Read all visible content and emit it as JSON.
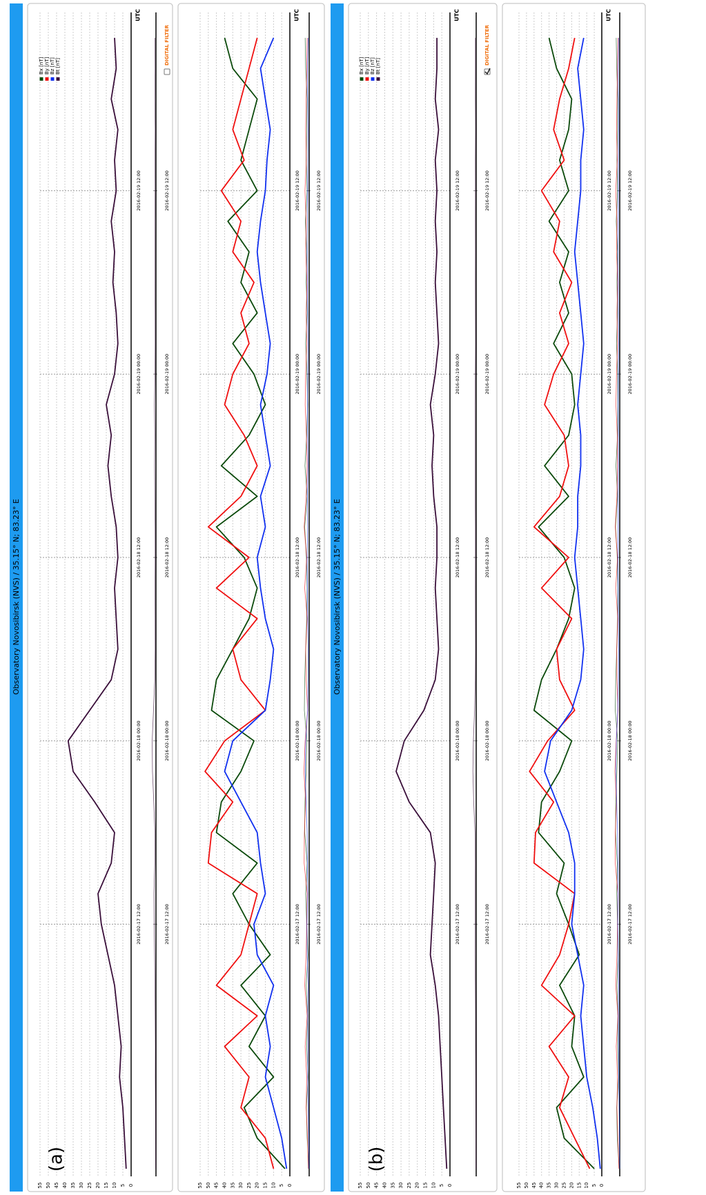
{
  "chart_data": [
    {
      "type": "line",
      "header": "Observatory Novosibirsk (NVS) / 35.15° N; 83.23° E",
      "annotation": "(a)",
      "unit_label": "UTC",
      "x": [
        "2016-02-16 20:00",
        "2016-02-16 22:00",
        "2016-02-17 00:00",
        "2016-02-17 02:00",
        "2016-02-17 04:00",
        "2016-02-17 06:00",
        "2016-02-17 08:00",
        "2016-02-17 10:00",
        "2016-02-17 12:00",
        "2016-02-17 14:00",
        "2016-02-17 16:00",
        "2016-02-17 18:00",
        "2016-02-17 20:00",
        "2016-02-17 22:00",
        "2016-02-18 00:00",
        "2016-02-18 02:00",
        "2016-02-18 04:00",
        "2016-02-18 06:00",
        "2016-02-18 08:00",
        "2016-02-18 10:00",
        "2016-02-18 12:00",
        "2016-02-18 14:00",
        "2016-02-18 16:00",
        "2016-02-18 18:00",
        "2016-02-18 20:00",
        "2016-02-18 22:00",
        "2016-02-19 00:00",
        "2016-02-19 02:00",
        "2016-02-19 04:00",
        "2016-02-19 06:00",
        "2016-02-19 08:00",
        "2016-02-19 10:00",
        "2016-02-19 12:00",
        "2016-02-19 14:00",
        "2016-02-19 16:00",
        "2016-02-19 18:00",
        "2016-02-19 20:00",
        "2016-02-19 22:00"
      ],
      "xlim": [
        "2016-02-16 19:30",
        "2016-02-19 23:40"
      ],
      "xticks": [
        "2016-02-17 12:00",
        "2016-02-18 00:00",
        "2016-02-18 12:00",
        "2016-02-19 00:00",
        "2016-02-19 12:00"
      ],
      "ylim": [
        0,
        55
      ],
      "yticks": [
        0,
        5,
        10,
        15,
        20,
        25,
        30,
        35,
        40,
        45,
        50,
        55
      ],
      "grid": true,
      "legend": [
        {
          "name": "Bx [nT]",
          "color": "#0b4a0b"
        },
        {
          "name": "By [nT]",
          "color": "#f01010"
        },
        {
          "name": "Bz [nT]",
          "color": "#1030f0"
        },
        {
          "name": "Bt [nT]",
          "color": "#3a0f3a"
        }
      ],
      "filter_label": "DIGITAL FILTER",
      "digital_filter": false,
      "series": [
        {
          "name": "Bt [nT]",
          "color": "#3a0f3a",
          "values": [
            3,
            4,
            5,
            7,
            6,
            8,
            10,
            14,
            18,
            20,
            12,
            10,
            22,
            35,
            38,
            25,
            12,
            8,
            9,
            10,
            8,
            9,
            12,
            14,
            12,
            15,
            10,
            8,
            9,
            11,
            10,
            12,
            9,
            10,
            8,
            12,
            9,
            10
          ]
        }
      ]
    },
    {
      "type": "line",
      "unit_label": "UTC",
      "x": [
        "2016-02-16 20:00",
        "2016-02-16 22:00",
        "2016-02-17 00:00",
        "2016-02-17 02:00",
        "2016-02-17 04:00",
        "2016-02-17 06:00",
        "2016-02-17 08:00",
        "2016-02-17 10:00",
        "2016-02-17 12:00",
        "2016-02-17 14:00",
        "2016-02-17 16:00",
        "2016-02-17 18:00",
        "2016-02-17 20:00",
        "2016-02-17 22:00",
        "2016-02-18 00:00",
        "2016-02-18 02:00",
        "2016-02-18 04:00",
        "2016-02-18 06:00",
        "2016-02-18 08:00",
        "2016-02-18 10:00",
        "2016-02-18 12:00",
        "2016-02-18 14:00",
        "2016-02-18 16:00",
        "2016-02-18 18:00",
        "2016-02-18 20:00",
        "2016-02-18 22:00",
        "2016-02-19 00:00",
        "2016-02-19 02:00",
        "2016-02-19 04:00",
        "2016-02-19 06:00",
        "2016-02-19 08:00",
        "2016-02-19 10:00",
        "2016-02-19 12:00",
        "2016-02-19 14:00",
        "2016-02-19 16:00",
        "2016-02-19 18:00",
        "2016-02-19 20:00",
        "2016-02-19 22:00"
      ],
      "xlim": [
        "2016-02-16 19:30",
        "2016-02-19 23:40"
      ],
      "xticks": [
        "2016-02-17 12:00",
        "2016-02-18 00:00",
        "2016-02-18 12:00",
        "2016-02-19 00:00",
        "2016-02-19 12:00"
      ],
      "ylim": [
        0,
        55
      ],
      "yticks": [
        0,
        5,
        10,
        15,
        20,
        25,
        30,
        35,
        40,
        45,
        50,
        55
      ],
      "grid": true,
      "series": [
        {
          "name": "Bx [nT]",
          "color": "#0b4a0b",
          "values": [
            3,
            20,
            28,
            10,
            25,
            15,
            30,
            12,
            25,
            35,
            20,
            45,
            42,
            30,
            22,
            48,
            45,
            35,
            25,
            20,
            28,
            45,
            20,
            42,
            25,
            15,
            22,
            35,
            20,
            30,
            25,
            38,
            20,
            30,
            25,
            20,
            35,
            40
          ]
        },
        {
          "name": "By [nT]",
          "color": "#f01010",
          "values": [
            10,
            15,
            30,
            25,
            40,
            20,
            45,
            30,
            25,
            20,
            50,
            48,
            35,
            52,
            40,
            15,
            30,
            35,
            20,
            45,
            25,
            50,
            30,
            20,
            28,
            40,
            35,
            25,
            30,
            22,
            35,
            30,
            42,
            28,
            35,
            30,
            25,
            20
          ]
        },
        {
          "name": "Bz [nT]",
          "color": "#1030f0",
          "values": [
            2,
            5,
            10,
            15,
            12,
            15,
            10,
            20,
            22,
            15,
            18,
            20,
            30,
            40,
            35,
            15,
            12,
            10,
            15,
            18,
            20,
            15,
            18,
            12,
            15,
            18,
            14,
            12,
            15,
            18,
            20,
            18,
            15,
            14,
            12,
            15,
            18,
            10
          ]
        }
      ]
    },
    {
      "type": "line",
      "header": "Observatory Novosibirsk (NVS) / 35.15° N; 83.23° E",
      "annotation": "(b)",
      "unit_label": "UTC",
      "x": [
        "2016-02-16 20:00",
        "2016-02-16 22:00",
        "2016-02-17 00:00",
        "2016-02-17 02:00",
        "2016-02-17 04:00",
        "2016-02-17 06:00",
        "2016-02-17 08:00",
        "2016-02-17 10:00",
        "2016-02-17 12:00",
        "2016-02-17 14:00",
        "2016-02-17 16:00",
        "2016-02-17 18:00",
        "2016-02-17 20:00",
        "2016-02-17 22:00",
        "2016-02-18 00:00",
        "2016-02-18 02:00",
        "2016-02-18 04:00",
        "2016-02-18 06:00",
        "2016-02-18 08:00",
        "2016-02-18 10:00",
        "2016-02-18 12:00",
        "2016-02-18 14:00",
        "2016-02-18 16:00",
        "2016-02-18 18:00",
        "2016-02-18 20:00",
        "2016-02-18 22:00",
        "2016-02-19 00:00",
        "2016-02-19 02:00",
        "2016-02-19 04:00",
        "2016-02-19 06:00",
        "2016-02-19 08:00",
        "2016-02-19 10:00",
        "2016-02-19 12:00",
        "2016-02-19 14:00",
        "2016-02-19 16:00",
        "2016-02-19 18:00",
        "2016-02-19 20:00",
        "2016-02-19 22:00"
      ],
      "xlim": [
        "2016-02-16 19:30",
        "2016-02-19 23:40"
      ],
      "xticks": [
        "2016-02-17 12:00",
        "2016-02-18 00:00",
        "2016-02-18 12:00",
        "2016-02-19 00:00",
        "2016-02-19 12:00"
      ],
      "ylim": [
        0,
        55
      ],
      "yticks": [
        0,
        5,
        10,
        15,
        20,
        25,
        30,
        35,
        40,
        45,
        50,
        55
      ],
      "grid": true,
      "legend": [
        {
          "name": "Bx [nT]",
          "color": "#0b4a0b"
        },
        {
          "name": "By [nT]",
          "color": "#f01010"
        },
        {
          "name": "Bz [nT]",
          "color": "#1030f0"
        },
        {
          "name": "Bt [nT]",
          "color": "#3a0f3a"
        }
      ],
      "filter_label": "DIGITAL FILTER",
      "digital_filter": true,
      "series": [
        {
          "name": "Bt [nT]",
          "color": "#3a0f3a",
          "values": [
            2,
            3,
            4,
            5,
            6,
            7,
            9,
            12,
            11,
            10,
            9,
            12,
            25,
            33,
            28,
            16,
            9,
            7,
            8,
            9,
            8,
            8,
            10,
            11,
            10,
            12,
            9,
            7,
            8,
            9,
            8,
            9,
            8,
            9,
            7,
            9,
            8,
            8
          ]
        }
      ]
    },
    {
      "type": "line",
      "unit_label": "UTC",
      "x": [
        "2016-02-16 20:00",
        "2016-02-16 22:00",
        "2016-02-17 00:00",
        "2016-02-17 02:00",
        "2016-02-17 04:00",
        "2016-02-17 06:00",
        "2016-02-17 08:00",
        "2016-02-17 10:00",
        "2016-02-17 12:00",
        "2016-02-17 14:00",
        "2016-02-17 16:00",
        "2016-02-17 18:00",
        "2016-02-17 20:00",
        "2016-02-17 22:00",
        "2016-02-18 00:00",
        "2016-02-18 02:00",
        "2016-02-18 04:00",
        "2016-02-18 06:00",
        "2016-02-18 08:00",
        "2016-02-18 10:00",
        "2016-02-18 12:00",
        "2016-02-18 14:00",
        "2016-02-18 16:00",
        "2016-02-18 18:00",
        "2016-02-18 20:00",
        "2016-02-18 22:00",
        "2016-02-19 00:00",
        "2016-02-19 02:00",
        "2016-02-19 04:00",
        "2016-02-19 06:00",
        "2016-02-19 08:00",
        "2016-02-19 10:00",
        "2016-02-19 12:00",
        "2016-02-19 14:00",
        "2016-02-19 16:00",
        "2016-02-19 18:00",
        "2016-02-19 20:00",
        "2016-02-19 22:00"
      ],
      "xlim": [
        "2016-02-16 19:30",
        "2016-02-19 23:40"
      ],
      "xticks": [
        "2016-02-17 12:00",
        "2016-02-18 00:00",
        "2016-02-18 12:00",
        "2016-02-19 00:00",
        "2016-02-19 12:00"
      ],
      "ylim": [
        0,
        55
      ],
      "yticks": [
        0,
        5,
        10,
        15,
        20,
        25,
        30,
        35,
        40,
        45,
        50,
        55
      ],
      "grid": true,
      "series": [
        {
          "name": "Bx [nT]",
          "color": "#0b4a0b",
          "values": [
            5,
            25,
            30,
            12,
            20,
            18,
            28,
            15,
            22,
            30,
            25,
            42,
            40,
            28,
            20,
            45,
            40,
            30,
            22,
            18,
            25,
            42,
            22,
            38,
            22,
            18,
            20,
            32,
            22,
            28,
            22,
            35,
            22,
            28,
            22,
            20,
            30,
            35
          ]
        },
        {
          "name": "By [nT]",
          "color": "#f01010",
          "values": [
            8,
            18,
            28,
            22,
            35,
            18,
            40,
            28,
            22,
            18,
            45,
            44,
            32,
            48,
            36,
            18,
            28,
            30,
            20,
            40,
            22,
            45,
            28,
            22,
            25,
            38,
            32,
            22,
            28,
            20,
            32,
            28,
            40,
            25,
            32,
            28,
            22,
            18
          ]
        },
        {
          "name": "Bz [nT]",
          "color": "#1030f0",
          "values": [
            1,
            3,
            6,
            10,
            12,
            14,
            12,
            16,
            20,
            18,
            18,
            22,
            30,
            38,
            34,
            20,
            14,
            12,
            14,
            16,
            18,
            16,
            16,
            14,
            14,
            16,
            14,
            12,
            14,
            16,
            18,
            16,
            14,
            14,
            12,
            14,
            16,
            12
          ]
        }
      ]
    }
  ]
}
